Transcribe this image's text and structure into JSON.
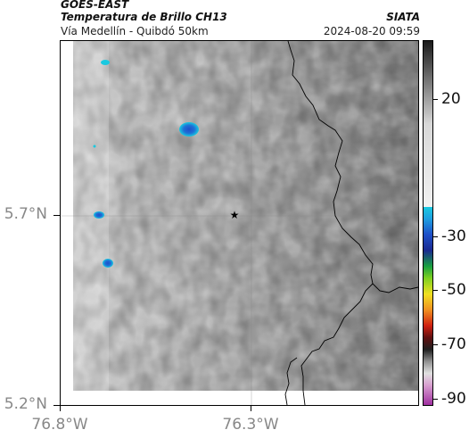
{
  "header": {
    "satellite": "GOES-EAST",
    "product": "Temperatura de Brillo CH13",
    "route": "Vía Medellín - Quibdó 50km",
    "organization": "SIATA",
    "timestamp": "2024-08-20 09:59"
  },
  "axes": {
    "y_ticks": [
      "5.7°N",
      "5.2°N"
    ],
    "x_ticks": [
      "76.8°W",
      "76.3°W"
    ]
  },
  "colorbar": {
    "ticks": [
      "20",
      "-30",
      "-50",
      "-70",
      "-90"
    ]
  },
  "colors": {
    "cold_top": "#1e6fd6",
    "cold_edge": "#19c9e0",
    "marker": "#000000",
    "coast": "#000000"
  },
  "map": {
    "center_marker": "star-icon"
  }
}
